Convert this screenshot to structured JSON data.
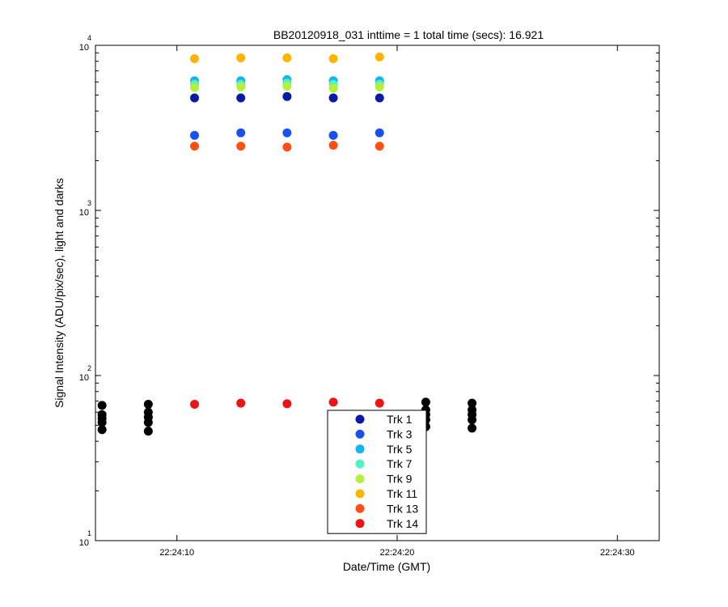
{
  "chart_data": {
    "type": "scatter",
    "title": "BB20120918_031 inttime = 1 total time (secs): 16.921",
    "xlabel": "Date/Time (GMT)",
    "ylabel": "Signal Intensity (ADU/pix/sec), light and darks",
    "xscale": "time",
    "yscale": "log",
    "xlim": [
      "22:24:06.3",
      "22:24:31.9"
    ],
    "ylim": [
      10,
      10000
    ],
    "xticks": [
      "22:24:10",
      "22:24:20",
      "22:24:30"
    ],
    "yticks": [
      {
        "base": "10",
        "exp": "1",
        "value": 10
      },
      {
        "base": "10",
        "exp": "2",
        "value": 100
      },
      {
        "base": "10",
        "exp": "3",
        "value": 1000
      },
      {
        "base": "10",
        "exp": "4",
        "value": 10000
      }
    ],
    "grid": false,
    "legend_position": "bottom-center",
    "series": [
      {
        "name": "Trk 1",
        "color": "#0a1aa8",
        "x": [
          "22:24:10.8",
          "22:24:12.9",
          "22:24:15.0",
          "22:24:17.1",
          "22:24:19.2"
        ],
        "y": [
          4800,
          4800,
          4900,
          4800,
          4800
        ]
      },
      {
        "name": "Trk 3",
        "color": "#1a50f0",
        "x": [
          "22:24:10.8",
          "22:24:12.9",
          "22:24:15.0",
          "22:24:17.1",
          "22:24:19.2"
        ],
        "y": [
          2850,
          2950,
          2950,
          2850,
          2950
        ]
      },
      {
        "name": "Trk 5",
        "color": "#14b4ee",
        "x": [
          "22:24:10.8",
          "22:24:12.9",
          "22:24:15.0",
          "22:24:17.1",
          "22:24:19.2"
        ],
        "y": [
          6100,
          6100,
          6200,
          6100,
          6100
        ]
      },
      {
        "name": "Trk 7",
        "color": "#50f0c8",
        "x": [
          "22:24:10.8",
          "22:24:12.9",
          "22:24:15.0",
          "22:24:17.1",
          "22:24:19.2"
        ],
        "y": [
          5800,
          5800,
          5900,
          5800,
          5800
        ]
      },
      {
        "name": "Trk 9",
        "color": "#b4f03c",
        "x": [
          "22:24:10.8",
          "22:24:12.9",
          "22:24:15.0",
          "22:24:17.1",
          "22:24:19.2"
        ],
        "y": [
          5550,
          5600,
          5650,
          5500,
          5600
        ]
      },
      {
        "name": "Trk 11",
        "color": "#ffb400",
        "x": [
          "22:24:10.8",
          "22:24:12.9",
          "22:24:15.0",
          "22:24:17.1",
          "22:24:19.2"
        ],
        "y": [
          8300,
          8400,
          8400,
          8300,
          8500
        ]
      },
      {
        "name": "Trk 13",
        "color": "#ff5014",
        "x": [
          "22:24:10.8",
          "22:24:12.9",
          "22:24:15.0",
          "22:24:17.1",
          "22:24:19.2"
        ],
        "y": [
          2450,
          2450,
          2420,
          2480,
          2450
        ]
      },
      {
        "name": "Trk 14",
        "color": "#ee1414",
        "x": [
          "22:24:10.8",
          "22:24:12.9",
          "22:24:15.0",
          "22:24:17.1",
          "22:24:19.2"
        ],
        "y": [
          67,
          68,
          67.5,
          69,
          68
        ]
      },
      {
        "color": "#000000",
        "x": [
          "22:24:06.6",
          "22:24:06.6",
          "22:24:06.6",
          "22:24:06.6",
          "22:24:06.6",
          "22:24:08.7",
          "22:24:08.7",
          "22:24:08.7",
          "22:24:08.7",
          "22:24:08.7",
          "22:24:21.3",
          "22:24:21.3",
          "22:24:21.3",
          "22:24:21.3",
          "22:24:21.3",
          "22:24:23.4",
          "22:24:23.4",
          "22:24:23.4",
          "22:24:23.4",
          "22:24:23.4"
        ],
        "y": [
          66,
          58,
          55,
          52,
          47,
          67,
          60,
          56,
          52,
          46,
          69,
          62,
          58,
          54,
          49,
          68,
          62,
          58,
          54,
          48
        ]
      }
    ]
  }
}
